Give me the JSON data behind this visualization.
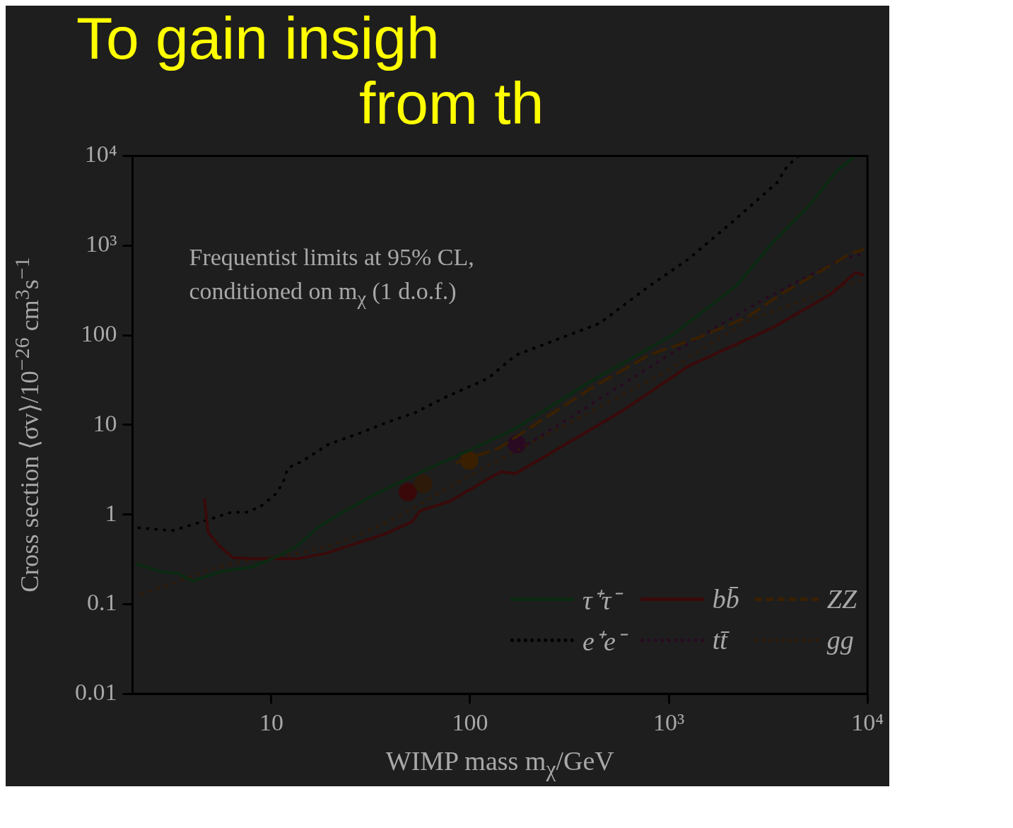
{
  "chart_data": {
    "type": "line",
    "title": "To gain insigh",
    "subtitle": "from th",
    "xlabel": "WIMP mass m$_{χ}$/GeV",
    "ylabel": "Cross section ⟨σv⟩/10$^{−26}$ cm$^{3}$s$^{−1}$",
    "annotations": [
      "Frequentist limits at 95% CL,",
      "conditioned on m$_{χ}$ (1 d.o.f.)"
    ],
    "log": "xy",
    "xlim": [
      2,
      10000
    ],
    "ylim": [
      0.01,
      10000
    ],
    "xticks": [
      10,
      100,
      {
        "value": 1000,
        "label": "10³"
      },
      {
        "value": 10000,
        "label": "10⁴"
      }
    ],
    "yticks": [
      0.01,
      0.1,
      1,
      10,
      100,
      {
        "value": 1000,
        "label": "10³"
      },
      {
        "value": 10000,
        "label": "10⁴"
      }
    ],
    "grid": false,
    "legend": "bottom right",
    "series": [
      {
        "name": "τ⁺τ⁻",
        "color": "#0b2a12",
        "line_style": "solid",
        "x": [
          2.1,
          2.8,
          3.4,
          4.0,
          5.5,
          8.0,
          10.7,
          13.4,
          17.3,
          21.8,
          33.6,
          59,
          105,
          169,
          400,
          1050,
          2200,
          3300,
          5100,
          7000,
          8700
        ],
        "values": [
          0.28,
          0.23,
          0.22,
          0.18,
          0.23,
          0.26,
          0.34,
          0.44,
          0.73,
          1.0,
          1.7,
          3.1,
          5.5,
          9.1,
          30,
          101,
          360,
          1050,
          2800,
          6800,
          10000
        ]
      },
      {
        "name": "bb̄",
        "color": "#3a0a0a",
        "line_style": "solid",
        "x": [
          4.6,
          4.8,
          5.5,
          6.4,
          8.5,
          13.4,
          18.9,
          37.5,
          51,
          56,
          79,
          143,
          169,
          593,
          1250,
          3300,
          6600,
          8700,
          9500
        ],
        "values": [
          1.46,
          0.63,
          0.44,
          0.33,
          0.32,
          0.32,
          0.37,
          0.61,
          0.83,
          1.1,
          1.4,
          3.0,
          2.85,
          14.6,
          45,
          120,
          290,
          500,
          470
        ]
      },
      {
        "name": "ZZ",
        "color": "#3a2000",
        "line_style": "dashed",
        "x": [
          86,
          140,
          190,
          400,
          794,
          1430,
          2500,
          3700,
          8300,
          9500
        ],
        "values": [
          3.8,
          5.5,
          8.6,
          25,
          60,
          95,
          160,
          290,
          820,
          900
        ]
      },
      {
        "name": "e⁺e⁻",
        "color": "#000000",
        "line_style": "dotted",
        "x": [
          2.15,
          3.16,
          4.4,
          6.3,
          7.6,
          8.9,
          10.4,
          11.4,
          12.1,
          14.2,
          19.5,
          27.5,
          38,
          53,
          74,
          123,
          170,
          447,
          794,
          1250,
          2100,
          3500,
          3950,
          4500
        ],
        "values": [
          0.71,
          0.66,
          0.82,
          1.06,
          1.06,
          1.25,
          1.65,
          2.2,
          3.3,
          3.9,
          6.1,
          8.0,
          10.6,
          13.7,
          20,
          33,
          60,
          135,
          350,
          700,
          1850,
          5000,
          7700,
          10000
        ]
      },
      {
        "name": "tt̄",
        "color": "#2a0a22",
        "line_style": "dotted",
        "x": [
          180,
          300,
          1000,
          3000,
          7300,
          9500
        ],
        "values": [
          5.5,
          11,
          60,
          250,
          700,
          800
        ]
      },
      {
        "name": "gg",
        "color": "#2e1a08",
        "line_style": "dotted",
        "x": [
          2.22,
          3.2,
          4.5,
          6.5,
          9.5,
          13.8,
          19.9,
          28.5,
          47,
          76,
          126,
          890,
          2500,
          5000,
          9500
        ],
        "values": [
          0.13,
          0.17,
          0.23,
          0.29,
          0.33,
          0.37,
          0.45,
          0.61,
          1.03,
          1.95,
          3.6,
          35,
          144,
          260,
          420
        ]
      },
      {
        "type": "scatter",
        "marker": "circle",
        "x": [
          48.6,
          58,
          99,
          172
        ],
        "values": [
          1.78,
          2.2,
          4.0,
          6.1
        ],
        "colors": [
          "#3a0808",
          "#2e1a08",
          "#3a2000",
          "#2a0a22"
        ]
      }
    ]
  }
}
